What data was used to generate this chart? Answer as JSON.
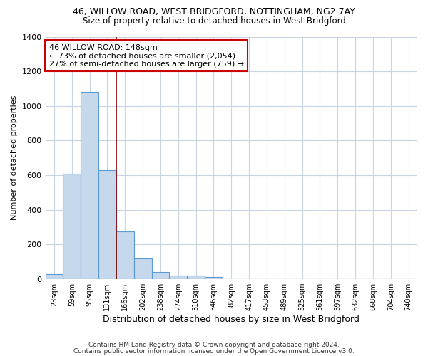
{
  "title1": "46, WILLOW ROAD, WEST BRIDGFORD, NOTTINGHAM, NG2 7AY",
  "title2": "Size of property relative to detached houses in West Bridgford",
  "xlabel": "Distribution of detached houses by size in West Bridgford",
  "ylabel": "Number of detached properties",
  "bar_color": "#c5d8ec",
  "bar_edge_color": "#5b9bd5",
  "categories": [
    "23sqm",
    "59sqm",
    "95sqm",
    "131sqm",
    "166sqm",
    "202sqm",
    "238sqm",
    "274sqm",
    "310sqm",
    "346sqm",
    "382sqm",
    "417sqm",
    "453sqm",
    "489sqm",
    "525sqm",
    "561sqm",
    "597sqm",
    "632sqm",
    "668sqm",
    "704sqm",
    "740sqm"
  ],
  "values": [
    30,
    610,
    1080,
    630,
    275,
    120,
    42,
    22,
    20,
    12,
    0,
    0,
    0,
    0,
    0,
    0,
    0,
    0,
    0,
    0,
    0
  ],
  "ylim": [
    0,
    1400
  ],
  "yticks": [
    0,
    200,
    400,
    600,
    800,
    1000,
    1200,
    1400
  ],
  "vline_x": 3.5,
  "vline_color": "#8b0000",
  "annotation_line1": "46 WILLOW ROAD: 148sqm",
  "annotation_line2": "← 73% of detached houses are smaller (2,054)",
  "annotation_line3": "27% of semi-detached houses are larger (759) →",
  "annotation_box_color": "white",
  "annotation_box_edge_color": "#cc0000",
  "footer1": "Contains HM Land Registry data © Crown copyright and database right 2024.",
  "footer2": "Contains public sector information licensed under the Open Government Licence v3.0.",
  "bg_color": "white",
  "grid_color": "#c8d4e0"
}
